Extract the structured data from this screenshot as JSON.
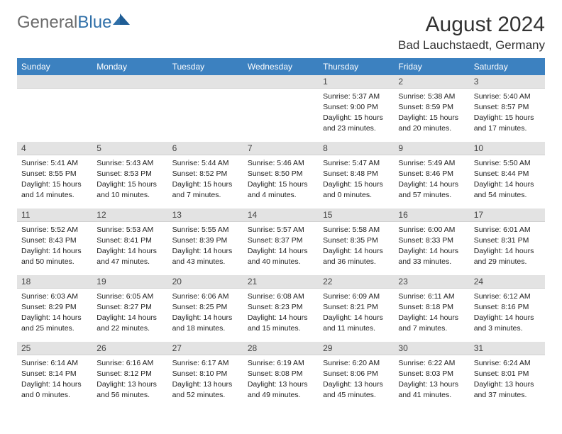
{
  "brand": {
    "part1": "General",
    "part2": "Blue"
  },
  "title": "August 2024",
  "location": "Bad Lauchstaedt, Germany",
  "colors": {
    "header_bg": "#3c81c0",
    "header_text": "#ffffff",
    "daynum_bg": "#e3e3e3",
    "text": "#222222",
    "logo_gray": "#6b6b6b",
    "logo_blue": "#2f6fa8"
  },
  "dayNames": [
    "Sunday",
    "Monday",
    "Tuesday",
    "Wednesday",
    "Thursday",
    "Friday",
    "Saturday"
  ],
  "weeks": [
    [
      {
        "n": "",
        "empty": true
      },
      {
        "n": "",
        "empty": true
      },
      {
        "n": "",
        "empty": true
      },
      {
        "n": "",
        "empty": true
      },
      {
        "n": "1",
        "sunrise": "5:37 AM",
        "sunset": "9:00 PM",
        "daylight": "15 hours and 23 minutes."
      },
      {
        "n": "2",
        "sunrise": "5:38 AM",
        "sunset": "8:59 PM",
        "daylight": "15 hours and 20 minutes."
      },
      {
        "n": "3",
        "sunrise": "5:40 AM",
        "sunset": "8:57 PM",
        "daylight": "15 hours and 17 minutes."
      }
    ],
    [
      {
        "n": "4",
        "sunrise": "5:41 AM",
        "sunset": "8:55 PM",
        "daylight": "15 hours and 14 minutes."
      },
      {
        "n": "5",
        "sunrise": "5:43 AM",
        "sunset": "8:53 PM",
        "daylight": "15 hours and 10 minutes."
      },
      {
        "n": "6",
        "sunrise": "5:44 AM",
        "sunset": "8:52 PM",
        "daylight": "15 hours and 7 minutes."
      },
      {
        "n": "7",
        "sunrise": "5:46 AM",
        "sunset": "8:50 PM",
        "daylight": "15 hours and 4 minutes."
      },
      {
        "n": "8",
        "sunrise": "5:47 AM",
        "sunset": "8:48 PM",
        "daylight": "15 hours and 0 minutes."
      },
      {
        "n": "9",
        "sunrise": "5:49 AM",
        "sunset": "8:46 PM",
        "daylight": "14 hours and 57 minutes."
      },
      {
        "n": "10",
        "sunrise": "5:50 AM",
        "sunset": "8:44 PM",
        "daylight": "14 hours and 54 minutes."
      }
    ],
    [
      {
        "n": "11",
        "sunrise": "5:52 AM",
        "sunset": "8:43 PM",
        "daylight": "14 hours and 50 minutes."
      },
      {
        "n": "12",
        "sunrise": "5:53 AM",
        "sunset": "8:41 PM",
        "daylight": "14 hours and 47 minutes."
      },
      {
        "n": "13",
        "sunrise": "5:55 AM",
        "sunset": "8:39 PM",
        "daylight": "14 hours and 43 minutes."
      },
      {
        "n": "14",
        "sunrise": "5:57 AM",
        "sunset": "8:37 PM",
        "daylight": "14 hours and 40 minutes."
      },
      {
        "n": "15",
        "sunrise": "5:58 AM",
        "sunset": "8:35 PM",
        "daylight": "14 hours and 36 minutes."
      },
      {
        "n": "16",
        "sunrise": "6:00 AM",
        "sunset": "8:33 PM",
        "daylight": "14 hours and 33 minutes."
      },
      {
        "n": "17",
        "sunrise": "6:01 AM",
        "sunset": "8:31 PM",
        "daylight": "14 hours and 29 minutes."
      }
    ],
    [
      {
        "n": "18",
        "sunrise": "6:03 AM",
        "sunset": "8:29 PM",
        "daylight": "14 hours and 25 minutes."
      },
      {
        "n": "19",
        "sunrise": "6:05 AM",
        "sunset": "8:27 PM",
        "daylight": "14 hours and 22 minutes."
      },
      {
        "n": "20",
        "sunrise": "6:06 AM",
        "sunset": "8:25 PM",
        "daylight": "14 hours and 18 minutes."
      },
      {
        "n": "21",
        "sunrise": "6:08 AM",
        "sunset": "8:23 PM",
        "daylight": "14 hours and 15 minutes."
      },
      {
        "n": "22",
        "sunrise": "6:09 AM",
        "sunset": "8:21 PM",
        "daylight": "14 hours and 11 minutes."
      },
      {
        "n": "23",
        "sunrise": "6:11 AM",
        "sunset": "8:18 PM",
        "daylight": "14 hours and 7 minutes."
      },
      {
        "n": "24",
        "sunrise": "6:12 AM",
        "sunset": "8:16 PM",
        "daylight": "14 hours and 3 minutes."
      }
    ],
    [
      {
        "n": "25",
        "sunrise": "6:14 AM",
        "sunset": "8:14 PM",
        "daylight": "14 hours and 0 minutes."
      },
      {
        "n": "26",
        "sunrise": "6:16 AM",
        "sunset": "8:12 PM",
        "daylight": "13 hours and 56 minutes."
      },
      {
        "n": "27",
        "sunrise": "6:17 AM",
        "sunset": "8:10 PM",
        "daylight": "13 hours and 52 minutes."
      },
      {
        "n": "28",
        "sunrise": "6:19 AM",
        "sunset": "8:08 PM",
        "daylight": "13 hours and 49 minutes."
      },
      {
        "n": "29",
        "sunrise": "6:20 AM",
        "sunset": "8:06 PM",
        "daylight": "13 hours and 45 minutes."
      },
      {
        "n": "30",
        "sunrise": "6:22 AM",
        "sunset": "8:03 PM",
        "daylight": "13 hours and 41 minutes."
      },
      {
        "n": "31",
        "sunrise": "6:24 AM",
        "sunset": "8:01 PM",
        "daylight": "13 hours and 37 minutes."
      }
    ]
  ],
  "labels": {
    "sunrise": "Sunrise:",
    "sunset": "Sunset:",
    "daylight": "Daylight:"
  }
}
